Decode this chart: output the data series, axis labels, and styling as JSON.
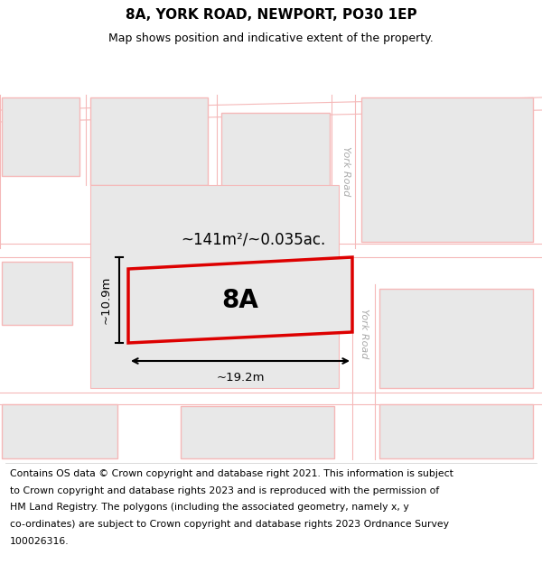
{
  "title": "8A, YORK ROAD, NEWPORT, PO30 1EP",
  "subtitle": "Map shows position and indicative extent of the property.",
  "area_label": "~141m²/~0.035ac.",
  "label_8A": "8A",
  "dim_width": "~19.2m",
  "dim_height": "~10.9m",
  "york_road_label": "York Road",
  "map_bg": "#ffffff",
  "building_fill": "#e8e8e8",
  "building_outline": "#f5b8b8",
  "road_line_color": "#f5b8b8",
  "highlight_fill": "#e8e8e8",
  "highlight_outline": "#dd0000",
  "title_fontsize": 11,
  "subtitle_fontsize": 9,
  "footer_fontsize": 7.8,
  "footer_lines": [
    "Contains OS data © Crown copyright and database right 2021. This information is subject",
    "to Crown copyright and database rights 2023 and is reproduced with the permission of",
    "HM Land Registry. The polygons (including the associated geometry, namely x, y",
    "co-ordinates) are subject to Crown copyright and database rights 2023 Ordnance Survey",
    "100026316."
  ]
}
